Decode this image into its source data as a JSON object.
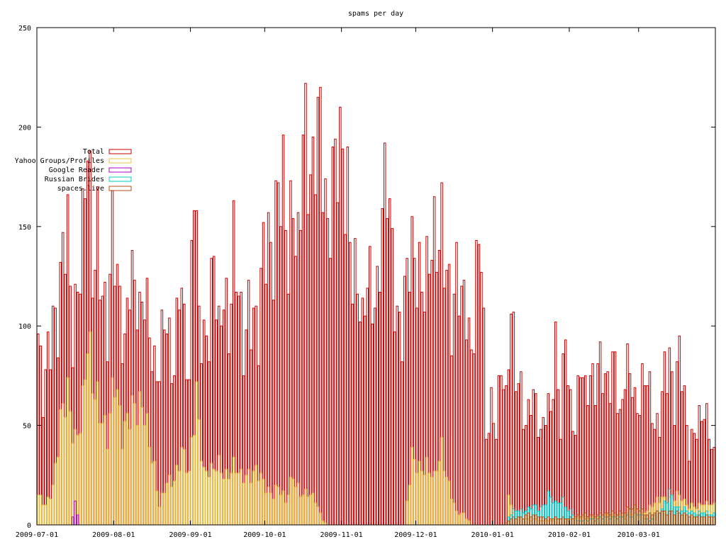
{
  "chart_data": {
    "type": "bar",
    "title": "spams per day",
    "xlabel": "",
    "ylabel": "",
    "ylim": [
      0,
      250
    ],
    "yticks": [
      0,
      50,
      100,
      150,
      200,
      250
    ],
    "xlim": [
      "2009-07-01",
      "2010-03-31"
    ],
    "xticks": [
      "2009-07-01",
      "2009-08-01",
      "2009-09-01",
      "2009-10-01",
      "2009-11-01",
      "2009-12-01",
      "2010-01-01",
      "2010-02-01",
      "2010-03-01"
    ],
    "grid": false,
    "legend_position": "top-left",
    "series": [
      {
        "name": "Total",
        "color": "#cc0000",
        "knots": [
          [
            "2009-07-01",
            89
          ],
          [
            "2009-07-03",
            60
          ],
          [
            "2009-07-05",
            92
          ],
          [
            "2009-07-07",
            111
          ],
          [
            "2009-07-09",
            99
          ],
          [
            "2009-07-11",
            131
          ],
          [
            "2009-07-13",
            142
          ],
          [
            "2009-07-15",
            97
          ],
          [
            "2009-07-17",
            130
          ],
          [
            "2009-07-19",
            145
          ],
          [
            "2009-07-21",
            185
          ],
          [
            "2009-07-23",
            120
          ],
          [
            "2009-07-25",
            154
          ],
          [
            "2009-07-27",
            127
          ],
          [
            "2009-07-29",
            95
          ],
          [
            "2009-07-31",
            140
          ],
          [
            "2009-08-03",
            110
          ],
          [
            "2009-08-05",
            95
          ],
          [
            "2009-08-07",
            134
          ],
          [
            "2009-08-09",
            113
          ],
          [
            "2009-08-11",
            97
          ],
          [
            "2009-08-13",
            119
          ],
          [
            "2009-08-15",
            107
          ],
          [
            "2009-08-17",
            80
          ],
          [
            "2009-08-19",
            73
          ],
          [
            "2009-08-21",
            101
          ],
          [
            "2009-08-23",
            91
          ],
          [
            "2009-08-25",
            82
          ],
          [
            "2009-08-27",
            133
          ],
          [
            "2009-08-29",
            95
          ],
          [
            "2009-08-31",
            64
          ],
          [
            "2009-09-02",
            191
          ],
          [
            "2009-09-04",
            113
          ],
          [
            "2009-09-06",
            95
          ],
          [
            "2009-09-08",
            90
          ],
          [
            "2009-09-10",
            129
          ],
          [
            "2009-09-12",
            96
          ],
          [
            "2009-09-14",
            130
          ],
          [
            "2009-09-16",
            98
          ],
          [
            "2009-09-18",
            134
          ],
          [
            "2009-09-20",
            110
          ],
          [
            "2009-09-22",
            88
          ],
          [
            "2009-09-24",
            118
          ],
          [
            "2009-09-26",
            108
          ],
          [
            "2009-09-28",
            89
          ],
          [
            "2009-09-30",
            133
          ],
          [
            "2009-10-02",
            144
          ],
          [
            "2009-10-04",
            147
          ],
          [
            "2009-10-06",
            178
          ],
          [
            "2009-10-08",
            162
          ],
          [
            "2009-10-10",
            121
          ],
          [
            "2009-10-12",
            169
          ],
          [
            "2009-10-14",
            145
          ],
          [
            "2009-10-16",
            212
          ],
          [
            "2009-10-18",
            167
          ],
          [
            "2009-10-20",
            162
          ],
          [
            "2009-10-22",
            213
          ],
          [
            "2009-10-24",
            205
          ],
          [
            "2009-10-26",
            146
          ],
          [
            "2009-10-28",
            165
          ],
          [
            "2009-10-30",
            177
          ],
          [
            "2009-11-01",
            189
          ],
          [
            "2009-11-03",
            179
          ],
          [
            "2009-11-05",
            131
          ],
          [
            "2009-11-07",
            115
          ],
          [
            "2009-11-09",
            93
          ],
          [
            "2009-11-11",
            130
          ],
          [
            "2009-11-13",
            125
          ],
          [
            "2009-11-15",
            116
          ],
          [
            "2009-11-17",
            149
          ],
          [
            "2009-11-19",
            168
          ],
          [
            "2009-11-21",
            138
          ],
          [
            "2009-11-23",
            111
          ],
          [
            "2009-11-25",
            101
          ],
          [
            "2009-11-27",
            121
          ],
          [
            "2009-11-29",
            130
          ],
          [
            "2009-12-01",
            130
          ],
          [
            "2009-12-03",
            132
          ],
          [
            "2009-12-05",
            128
          ],
          [
            "2009-12-07",
            135
          ],
          [
            "2009-12-09",
            131
          ],
          [
            "2009-12-11",
            152
          ],
          [
            "2009-12-13",
            141
          ],
          [
            "2009-12-15",
            102
          ],
          [
            "2009-12-17",
            120
          ],
          [
            "2009-12-19",
            107
          ],
          [
            "2009-12-21",
            114
          ],
          [
            "2009-12-23",
            90
          ],
          [
            "2009-12-25",
            131
          ],
          [
            "2009-12-27",
            138
          ],
          [
            "2009-12-29",
            41
          ],
          [
            "2009-12-31",
            61
          ],
          [
            "2010-01-02",
            53
          ],
          [
            "2010-01-04",
            84
          ],
          [
            "2010-01-06",
            57
          ],
          [
            "2010-01-08",
            103
          ],
          [
            "2010-01-10",
            80
          ],
          [
            "2010-01-12",
            73
          ],
          [
            "2010-01-14",
            49
          ],
          [
            "2010-01-16",
            61
          ],
          [
            "2010-01-18",
            58
          ],
          [
            "2010-01-20",
            45
          ],
          [
            "2010-01-22",
            65
          ],
          [
            "2010-01-24",
            58
          ],
          [
            "2010-01-26",
            84
          ],
          [
            "2010-01-28",
            45
          ],
          [
            "2010-01-30",
            102
          ],
          [
            "2010-02-01",
            63
          ],
          [
            "2010-02-03",
            48
          ],
          [
            "2010-02-05",
            78
          ],
          [
            "2010-02-07",
            62
          ],
          [
            "2010-02-09",
            76
          ],
          [
            "2010-02-11",
            78
          ],
          [
            "2010-02-13",
            85
          ],
          [
            "2010-02-15",
            66
          ],
          [
            "2010-02-17",
            68
          ],
          [
            "2010-02-19",
            87
          ],
          [
            "2010-02-21",
            55
          ],
          [
            "2010-02-23",
            79
          ],
          [
            "2010-02-25",
            74
          ],
          [
            "2010-02-27",
            57
          ],
          [
            "2010-03-01",
            62
          ],
          [
            "2010-03-03",
            86
          ],
          [
            "2010-03-05",
            68
          ],
          [
            "2010-03-07",
            45
          ],
          [
            "2010-03-09",
            48
          ],
          [
            "2010-03-11",
            81
          ],
          [
            "2010-03-13",
            90
          ],
          [
            "2010-03-15",
            60
          ],
          [
            "2010-03-17",
            85
          ],
          [
            "2010-03-19",
            59
          ],
          [
            "2010-03-21",
            39
          ],
          [
            "2010-03-23",
            51
          ],
          [
            "2010-03-25",
            52
          ],
          [
            "2010-03-27",
            54
          ],
          [
            "2010-03-31",
            35
          ]
        ]
      },
      {
        "name": "Yahoo Groups/Profiles",
        "color": "#e8c040",
        "knots": [
          [
            "2009-07-01",
            14
          ],
          [
            "2009-07-04",
            10
          ],
          [
            "2009-07-07",
            20
          ],
          [
            "2009-07-10",
            50
          ],
          [
            "2009-07-13",
            63
          ],
          [
            "2009-07-16",
            45
          ],
          [
            "2009-07-19",
            60
          ],
          [
            "2009-07-21",
            87
          ],
          [
            "2009-07-23",
            70
          ],
          [
            "2009-07-26",
            63
          ],
          [
            "2009-07-29",
            44
          ],
          [
            "2009-08-01",
            70
          ],
          [
            "2009-08-04",
            48
          ],
          [
            "2009-08-07",
            60
          ],
          [
            "2009-08-10",
            54
          ],
          [
            "2009-08-13",
            58
          ],
          [
            "2009-08-16",
            38
          ],
          [
            "2009-08-19",
            9
          ],
          [
            "2009-08-22",
            21
          ],
          [
            "2009-08-25",
            24
          ],
          [
            "2009-08-28",
            37
          ],
          [
            "2009-08-31",
            24
          ],
          [
            "2009-09-03",
            69
          ],
          [
            "2009-09-06",
            27
          ],
          [
            "2009-09-09",
            25
          ],
          [
            "2009-09-12",
            31
          ],
          [
            "2009-09-15",
            26
          ],
          [
            "2009-09-18",
            28
          ],
          [
            "2009-09-21",
            24
          ],
          [
            "2009-09-24",
            27
          ],
          [
            "2009-09-27",
            27
          ],
          [
            "2009-09-30",
            20
          ],
          [
            "2009-10-03",
            16
          ],
          [
            "2009-10-06",
            20
          ],
          [
            "2009-10-09",
            11
          ],
          [
            "2009-10-12",
            25
          ],
          [
            "2009-10-15",
            17
          ],
          [
            "2009-10-18",
            15
          ],
          [
            "2009-10-21",
            12
          ],
          [
            "2009-10-24",
            2
          ],
          [
            "2009-10-26",
            0
          ],
          [
            "2009-11-26",
            0
          ],
          [
            "2009-11-29",
            33
          ],
          [
            "2009-12-02",
            30
          ],
          [
            "2009-12-05",
            30
          ],
          [
            "2009-12-08",
            22
          ],
          [
            "2009-12-11",
            39
          ],
          [
            "2009-12-14",
            20
          ],
          [
            "2009-12-17",
            6
          ],
          [
            "2009-12-20",
            5
          ],
          [
            "2009-12-23",
            0
          ],
          [
            "2010-01-06",
            0
          ],
          [
            "2010-01-07",
            15
          ],
          [
            "2010-01-09",
            5
          ],
          [
            "2010-01-14",
            3
          ],
          [
            "2010-01-20",
            2
          ],
          [
            "2010-02-01",
            3
          ],
          [
            "2010-02-15",
            4
          ],
          [
            "2010-03-01",
            5
          ],
          [
            "2010-03-10",
            13
          ],
          [
            "2010-03-16",
            15
          ],
          [
            "2010-03-20",
            10
          ],
          [
            "2010-03-31",
            10
          ]
        ]
      },
      {
        "name": "Google Reader",
        "color": "#aa00cc",
        "knots": [
          [
            "2009-07-14",
            0
          ],
          [
            "2009-07-15",
            5
          ],
          [
            "2009-07-16",
            11
          ],
          [
            "2009-07-17",
            6
          ],
          [
            "2009-07-18",
            0
          ],
          [
            "2009-07-19",
            0
          ],
          [
            "2010-03-31",
            0
          ]
        ]
      },
      {
        "name": "Russian Brides",
        "color": "#00cccc",
        "knots": [
          [
            "2010-01-06",
            0
          ],
          [
            "2010-01-07",
            4
          ],
          [
            "2010-01-10",
            8
          ],
          [
            "2010-01-14",
            7
          ],
          [
            "2010-01-17",
            9
          ],
          [
            "2010-01-20",
            8
          ],
          [
            "2010-01-23",
            16
          ],
          [
            "2010-01-26",
            10
          ],
          [
            "2010-01-29",
            12
          ],
          [
            "2010-02-01",
            7
          ],
          [
            "2010-02-04",
            2
          ],
          [
            "2010-02-10",
            3
          ],
          [
            "2010-02-20",
            4
          ],
          [
            "2010-02-26",
            4
          ],
          [
            "2010-03-01",
            6
          ],
          [
            "2010-03-05",
            2
          ],
          [
            "2010-03-10",
            8
          ],
          [
            "2010-03-13",
            18
          ],
          [
            "2010-03-16",
            8
          ],
          [
            "2010-03-25",
            6
          ],
          [
            "2010-03-31",
            5
          ]
        ]
      },
      {
        "name": "spaces.live",
        "color": "#b05010",
        "knots": [
          [
            "2010-01-05",
            0
          ],
          [
            "2010-01-08",
            3
          ],
          [
            "2010-01-15",
            5
          ],
          [
            "2010-01-25",
            3
          ],
          [
            "2010-02-01",
            4
          ],
          [
            "2010-02-10",
            5
          ],
          [
            "2010-02-20",
            6
          ],
          [
            "2010-02-28",
            9
          ],
          [
            "2010-03-05",
            5
          ],
          [
            "2010-03-12",
            7
          ],
          [
            "2010-03-20",
            5
          ],
          [
            "2010-03-31",
            4
          ]
        ]
      }
    ]
  }
}
